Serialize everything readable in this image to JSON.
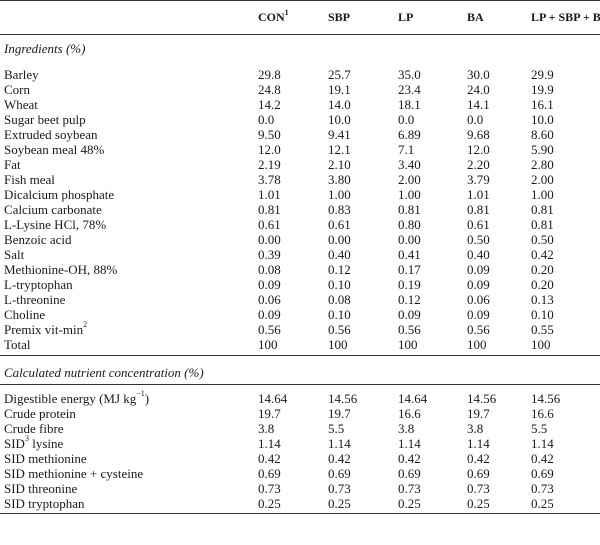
{
  "header": {
    "columns": [
      "",
      "CON",
      "SBP",
      "LP",
      "BA",
      "LP + SBP + BA"
    ],
    "con_superscript": "1"
  },
  "sections": [
    {
      "title": "Ingredients (%)",
      "rows": [
        {
          "label": "Barley",
          "values": [
            "29.8",
            "25.7",
            "35.0",
            "30.0",
            "29.9"
          ]
        },
        {
          "label": "Corn",
          "values": [
            "24.8",
            "19.1",
            "23.4",
            "24.0",
            "19.9"
          ]
        },
        {
          "label": "Wheat",
          "values": [
            "14.2",
            "14.0",
            "18.1",
            "14.1",
            "16.1"
          ]
        },
        {
          "label": "Sugar beet pulp",
          "values": [
            "0.0",
            "10.0",
            "0.0",
            "0.0",
            "10.0"
          ]
        },
        {
          "label": "Extruded soybean",
          "values": [
            "9.50",
            "9.41",
            "6.89",
            "9.68",
            "8.60"
          ]
        },
        {
          "label": "Soybean meal 48%",
          "values": [
            "12.0",
            "12.1",
            "7.1",
            "12.0",
            "5.90"
          ]
        },
        {
          "label": "Fat",
          "values": [
            "2.19",
            "2.10",
            "3.40",
            "2.20",
            "2.80"
          ]
        },
        {
          "label": "Fish meal",
          "values": [
            "3.78",
            "3.80",
            "2.00",
            "3.79",
            "2.00"
          ]
        },
        {
          "label": "Dicalcium phosphate",
          "values": [
            "1.01",
            "1.00",
            "1.00",
            "1.01",
            "1.00"
          ]
        },
        {
          "label": "Calcium carbonate",
          "values": [
            "0.81",
            "0.83",
            "0.81",
            "0.81",
            "0.81"
          ]
        },
        {
          "label": "L-Lysine HCl, 78%",
          "values": [
            "0.61",
            "0.61",
            "0.80",
            "0.61",
            "0.81"
          ]
        },
        {
          "label": "Benzoic acid",
          "values": [
            "0.00",
            "0.00",
            "0.00",
            "0.50",
            "0.50"
          ]
        },
        {
          "label": "Salt",
          "values": [
            "0.39",
            "0.40",
            "0.41",
            "0.40",
            "0.42"
          ]
        },
        {
          "label": "Methionine-OH, 88%",
          "values": [
            "0.08",
            "0.12",
            "0.17",
            "0.09",
            "0.20"
          ]
        },
        {
          "label": "L-tryptophan",
          "values": [
            "0.09",
            "0.10",
            "0.19",
            "0.09",
            "0.20"
          ]
        },
        {
          "label": "L-threonine",
          "values": [
            "0.06",
            "0.08",
            "0.12",
            "0.06",
            "0.13"
          ]
        },
        {
          "label": "Choline",
          "values": [
            "0.09",
            "0.10",
            "0.09",
            "0.09",
            "0.10"
          ]
        },
        {
          "label": "Premix vit-min",
          "sup": "2",
          "values": [
            "0.56",
            "0.56",
            "0.56",
            "0.56",
            "0.55"
          ]
        },
        {
          "label": "Total",
          "values": [
            "100",
            "100",
            "100",
            "100",
            "100"
          ]
        }
      ]
    },
    {
      "title": "Calculated nutrient concentration (%)",
      "rows": [
        {
          "label": "Digestible energy (MJ kg",
          "sup": "−1",
          "label_suffix": ")",
          "values": [
            "14.64",
            "14.56",
            "14.64",
            "14.56",
            "14.56"
          ]
        },
        {
          "label": "Crude protein",
          "values": [
            "19.7",
            "19.7",
            "16.6",
            "19.7",
            "16.6"
          ]
        },
        {
          "label": "Crude fibre",
          "values": [
            "3.8",
            "5.5",
            "3.8",
            "3.8",
            "5.5"
          ]
        },
        {
          "label": "SID",
          "sup": "3",
          "label_suffix": " lysine",
          "values": [
            "1.14",
            "1.14",
            "1.14",
            "1.14",
            "1.14"
          ]
        },
        {
          "label": "SID methionine",
          "values": [
            "0.42",
            "0.42",
            "0.42",
            "0.42",
            "0.42"
          ]
        },
        {
          "label": "SID methionine + cysteine",
          "values": [
            "0.69",
            "0.69",
            "0.69",
            "0.69",
            "0.69"
          ]
        },
        {
          "label": "SID threonine",
          "values": [
            "0.73",
            "0.73",
            "0.73",
            "0.73",
            "0.73"
          ]
        },
        {
          "label": "SID tryptophan",
          "values": [
            "0.25",
            "0.25",
            "0.25",
            "0.25",
            "0.25"
          ]
        }
      ]
    }
  ]
}
